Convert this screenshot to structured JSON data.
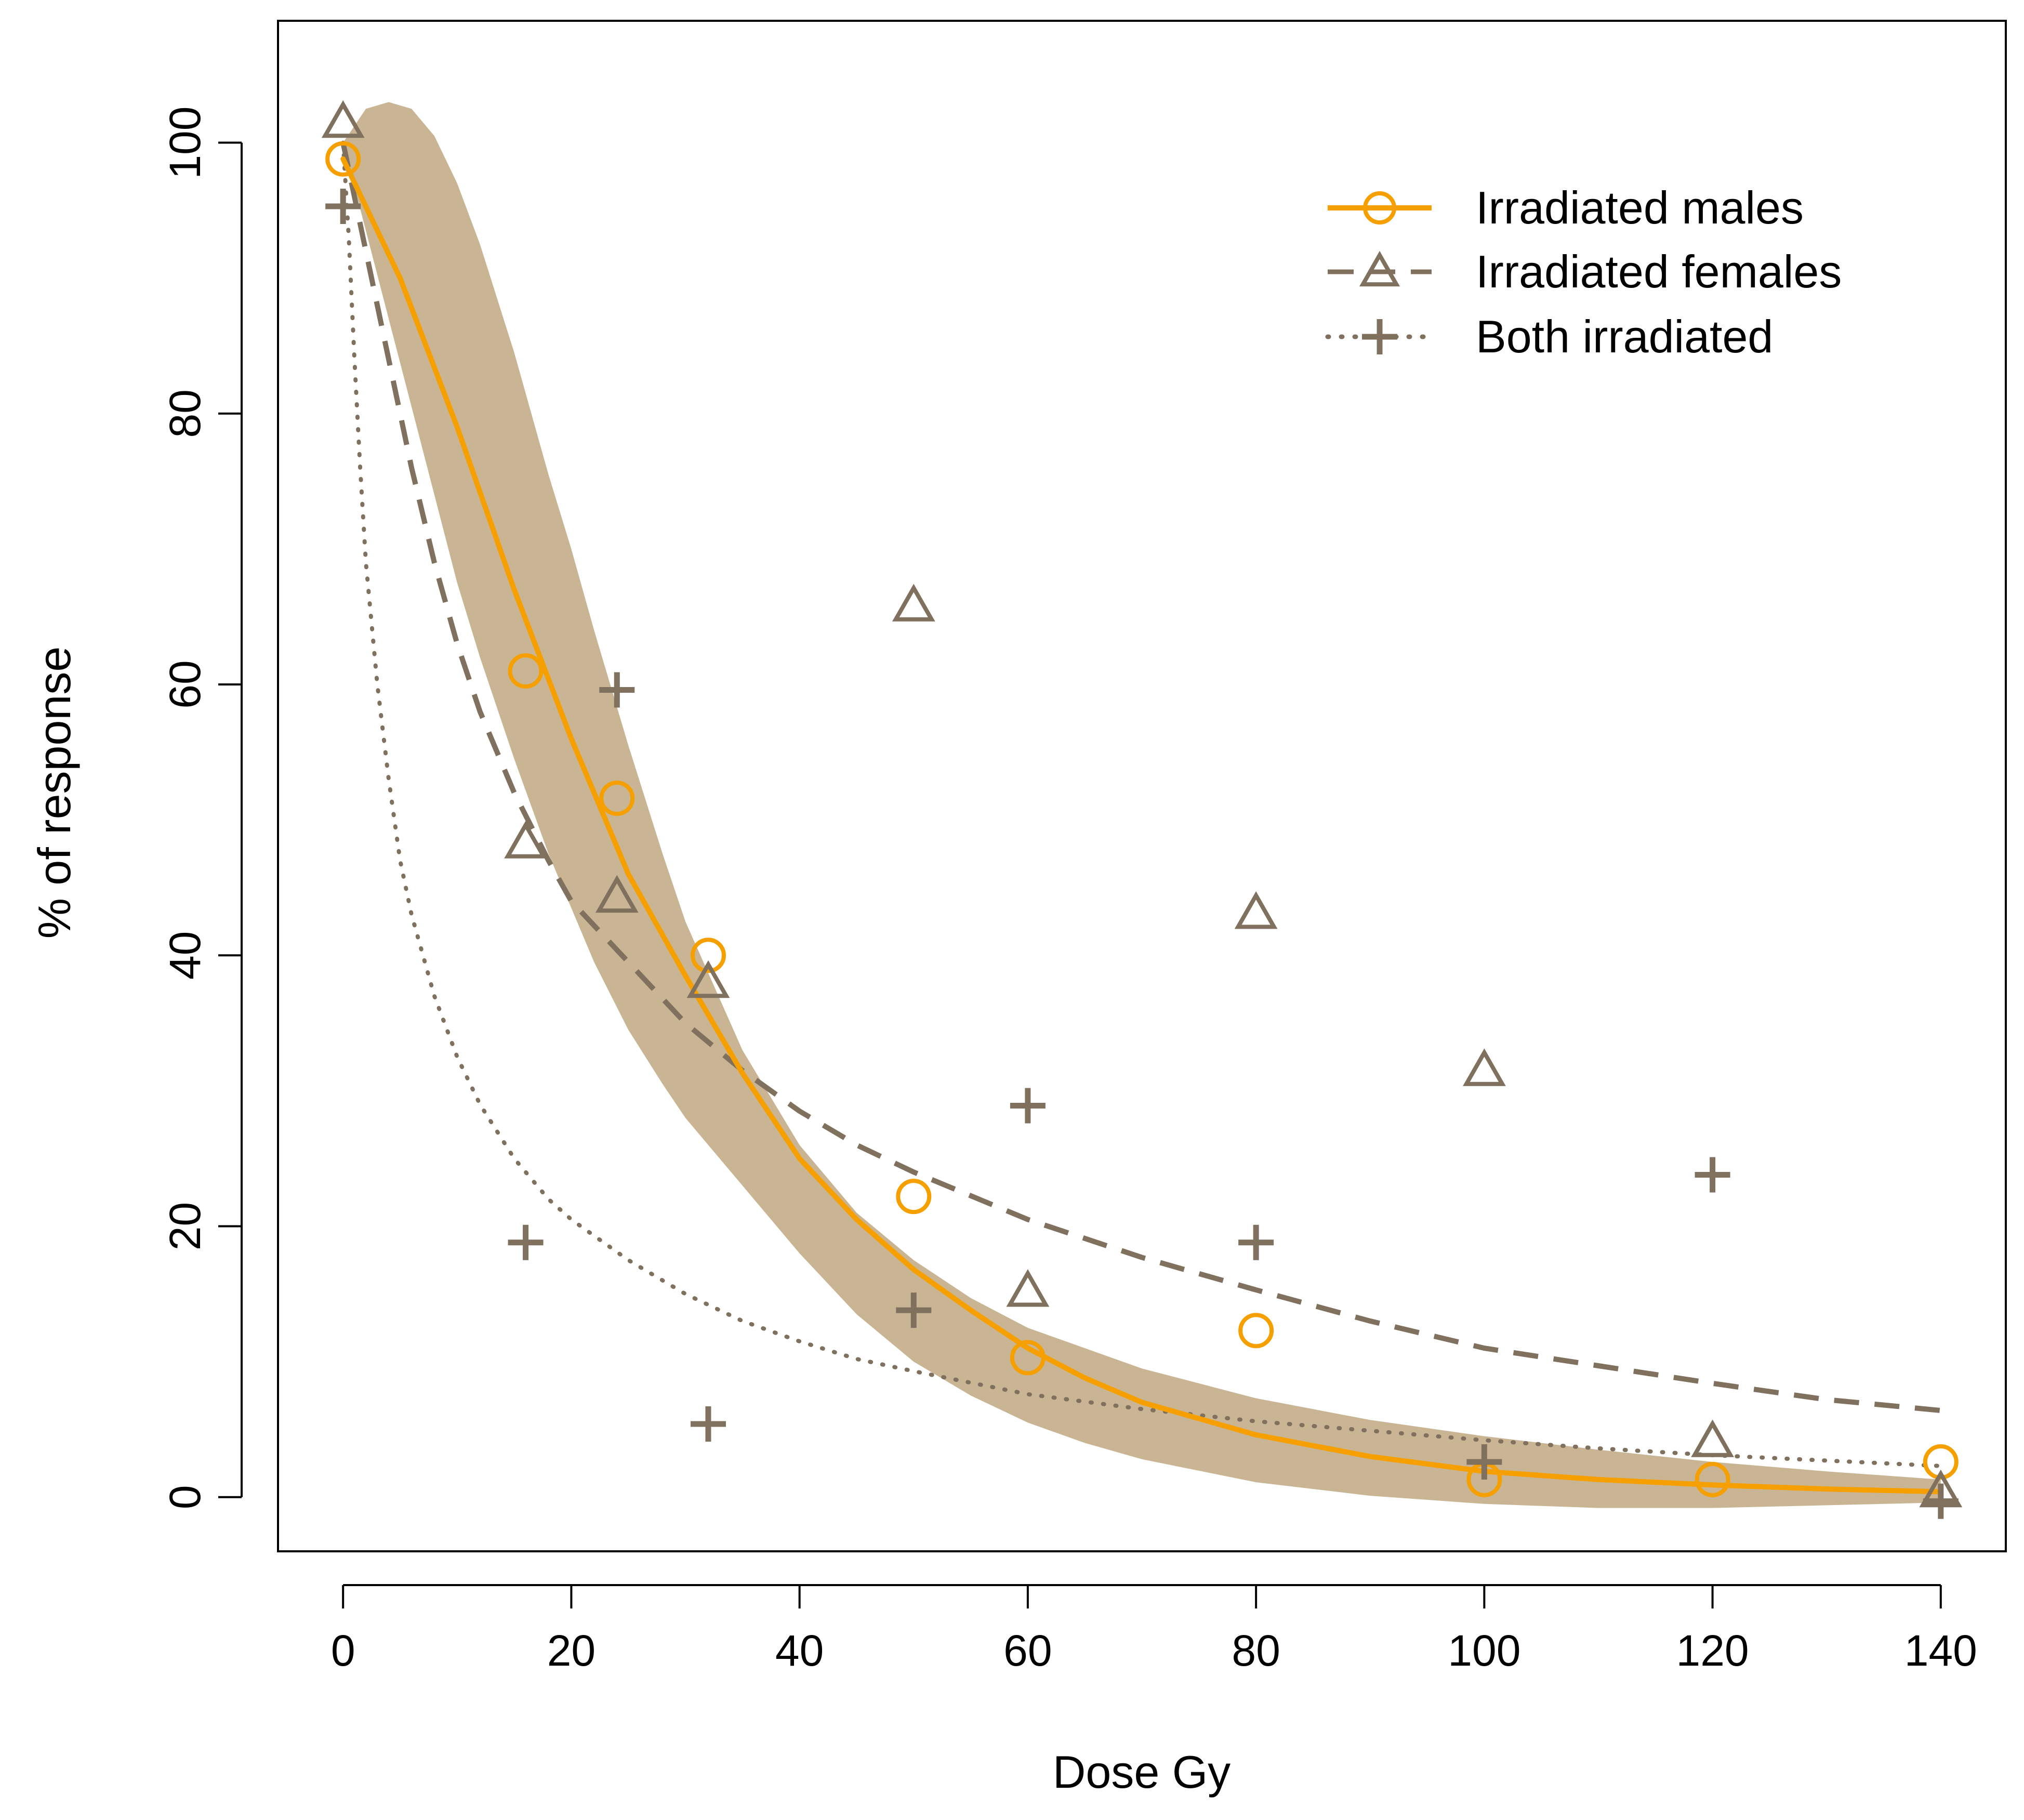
{
  "chart_data": {
    "type": "scatter",
    "title": "",
    "xlabel": "Dose Gy",
    "ylabel": "% of response",
    "xlim": [
      -5.7,
      145.7
    ],
    "ylim": [
      -4,
      109
    ],
    "xticks": [
      0,
      20,
      40,
      60,
      80,
      100,
      120,
      140
    ],
    "yticks": [
      0,
      20,
      40,
      60,
      80,
      100
    ],
    "legend_position": "top-right",
    "series": [
      {
        "name": "Irradiated males",
        "marker": "circle",
        "line": "solid",
        "color": "#f5a000",
        "points": [
          {
            "x": 0,
            "y": 98.8
          },
          {
            "x": 16,
            "y": 61
          },
          {
            "x": 24,
            "y": 51.6
          },
          {
            "x": 32,
            "y": 40
          },
          {
            "x": 50,
            "y": 22.2
          },
          {
            "x": 60,
            "y": 10.3
          },
          {
            "x": 80,
            "y": 12.3
          },
          {
            "x": 100,
            "y": 1.3
          },
          {
            "x": 120,
            "y": 1.3
          },
          {
            "x": 140,
            "y": 2.6
          }
        ],
        "fit": {
          "x": [
            0,
            5,
            10,
            15,
            20,
            25,
            30,
            35,
            40,
            45,
            50,
            55,
            60,
            65,
            70,
            80,
            90,
            100,
            110,
            120,
            130,
            140
          ],
          "y": [
            98.8,
            90,
            79,
            67,
            56,
            46,
            38.5,
            31.3,
            25,
            20.5,
            16.8,
            13.8,
            11,
            8.8,
            7,
            4.6,
            3,
            1.9,
            1.3,
            0.9,
            0.6,
            0.4
          ]
        },
        "band": {
          "x": [
            0,
            2,
            4,
            6,
            8,
            10,
            12,
            15,
            18,
            20,
            22,
            25,
            28,
            30,
            35,
            40,
            45,
            50,
            55,
            60,
            65,
            70,
            80,
            90,
            100,
            110,
            120,
            130,
            140
          ],
          "upper": [
            100,
            102.5,
            103,
            102.5,
            100.5,
            97,
            92.5,
            84.5,
            75.5,
            70,
            64,
            55.5,
            47.5,
            42.5,
            33,
            26,
            21,
            17.5,
            14.7,
            12.5,
            11,
            9.5,
            7.3,
            5.7,
            4.5,
            3.5,
            2.6,
            1.9,
            1.3
          ],
          "lower": [
            100,
            93.5,
            87,
            80.5,
            74,
            67.5,
            62,
            54.5,
            47.5,
            43.5,
            39.5,
            34.5,
            30.5,
            28,
            23,
            18,
            13.5,
            10,
            7.5,
            5.5,
            4,
            2.8,
            1.1,
            0.1,
            -0.5,
            -0.8,
            -0.8,
            -0.6,
            -0.4
          ]
        }
      },
      {
        "name": "Irradiated females",
        "marker": "triangle",
        "line": "dashed",
        "color": "#80705e",
        "points": [
          {
            "x": 0,
            "y": 101.5
          },
          {
            "x": 16,
            "y": 48.3
          },
          {
            "x": 24,
            "y": 44.3
          },
          {
            "x": 32,
            "y": 38
          },
          {
            "x": 50,
            "y": 65.8
          },
          {
            "x": 60,
            "y": 15.2
          },
          {
            "x": 80,
            "y": 43.1
          },
          {
            "x": 100,
            "y": 31.5
          },
          {
            "x": 120,
            "y": 4.1
          },
          {
            "x": 140,
            "y": 0.4
          }
        ],
        "fit": {
          "x": [
            0,
            2,
            4,
            6,
            8,
            10,
            12,
            15,
            18,
            20,
            25,
            30,
            35,
            40,
            45,
            50,
            60,
            70,
            80,
            90,
            100,
            110,
            120,
            130,
            140
          ],
          "y": [
            100,
            92,
            84,
            76,
            69,
            63,
            58,
            52,
            47,
            44,
            39.5,
            35,
            31.5,
            28.5,
            26,
            24,
            20.5,
            17.7,
            15.3,
            13,
            11,
            9.7,
            8.4,
            7.2,
            6.4
          ]
        }
      },
      {
        "name": "Both irradiated",
        "marker": "plus",
        "line": "dotted",
        "color": "#80705e",
        "points": [
          {
            "x": 0,
            "y": 95.3
          },
          {
            "x": 16,
            "y": 18.8
          },
          {
            "x": 24,
            "y": 59.6
          },
          {
            "x": 32,
            "y": 5.4
          },
          {
            "x": 50,
            "y": 13.8
          },
          {
            "x": 60,
            "y": 28.9
          },
          {
            "x": 80,
            "y": 18.8
          },
          {
            "x": 100,
            "y": 2.6
          },
          {
            "x": 120,
            "y": 23.8
          },
          {
            "x": 140,
            "y": -0.3
          }
        ],
        "fit": {
          "x": [
            0,
            0.5,
            1,
            1.5,
            2,
            3,
            4,
            5,
            6,
            8,
            10,
            12,
            15,
            18,
            20,
            25,
            30,
            35,
            40,
            45,
            50,
            60,
            70,
            80,
            90,
            100,
            110,
            120,
            130,
            140
          ],
          "y": [
            100,
            93,
            84,
            76,
            69,
            60,
            53,
            47,
            43,
            37,
            32.5,
            29,
            25,
            22,
            20.5,
            17.5,
            15,
            13,
            11.5,
            10.2,
            9.3,
            7.6,
            6.5,
            5.6,
            4.9,
            4.2,
            3.6,
            3.1,
            2.7,
            2.3
          ]
        }
      }
    ]
  }
}
